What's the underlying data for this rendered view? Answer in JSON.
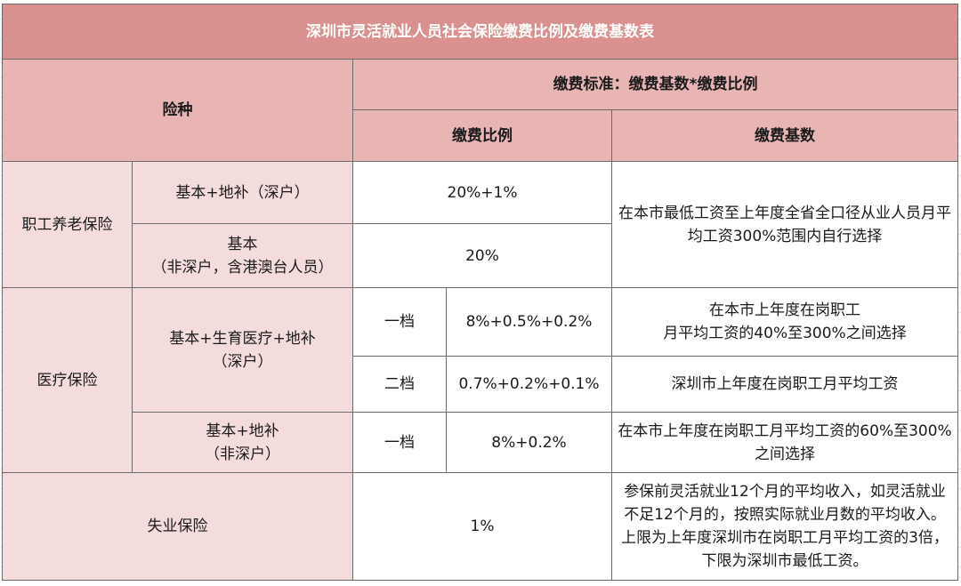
{
  "table": {
    "title": "深圳市灵活就业人员社会保险缴费比例及缴费基数表",
    "header": {
      "insurance_type": "险种",
      "standard": "缴费标准：缴费基数*缴费比例",
      "ratio": "缴费比例",
      "base": "缴费基数"
    },
    "pension": {
      "name": "职工养老保险",
      "row1": {
        "type": "基本+地补（深户）",
        "ratio": "20%+1%"
      },
      "row2": {
        "type": "基本\n（非深户，含港澳台人员）",
        "ratio": "20%"
      },
      "base": "在本市最低工资至上年度全省全口径从业人员月平均工资300%范围内自行选择"
    },
    "medical": {
      "name": "医疗保险",
      "group1": {
        "type": "基本+生育医疗+地补\n（深户）",
        "tier1": {
          "tier": "一档",
          "ratio": "8%+0.5%+0.2%",
          "base": "在本市上年度在岗职工\n月平均工资的40%至300%之间选择"
        },
        "tier2": {
          "tier": "二档",
          "ratio": "0.7%+0.2%+0.1%",
          "base": "深圳市上年度在岗职工月平均工资"
        }
      },
      "group2": {
        "type": "基本+地补\n（非深户）",
        "tier": "一档",
        "ratio": "8%+0.2%",
        "base": "在本市上年度在岗职工月平均工资的60%至300%之间选择"
      }
    },
    "unemployment": {
      "name": "失业保险",
      "ratio": "1%",
      "base": "参保前灵活就业12个月的平均收入，如灵活就业不足12个月的，按照实际就业月数的平均收入。上限为上年度深圳市在岗职工月平均工资的3倍，下限为深圳市最低工资。"
    }
  }
}
